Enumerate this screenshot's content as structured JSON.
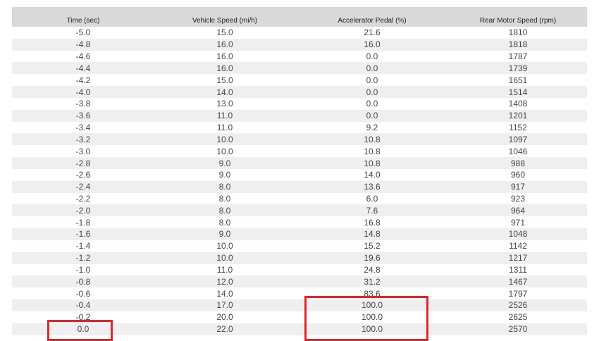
{
  "table": {
    "headers": [
      "Time (sec)",
      "Vehicle Speed (mi/h)",
      "Accelerator Pedal (%)",
      "Rear Motor Speed (rpm)"
    ],
    "rows": [
      [
        "-5.0",
        "15.0",
        "21.6",
        "1810"
      ],
      [
        "-4.8",
        "16.0",
        "16.0",
        "1818"
      ],
      [
        "-4.6",
        "16.0",
        "0.0",
        "1787"
      ],
      [
        "-4.4",
        "16.0",
        "0.0",
        "1739"
      ],
      [
        "-4.2",
        "15.0",
        "0.0",
        "1651"
      ],
      [
        "-4.0",
        "14.0",
        "0.0",
        "1514"
      ],
      [
        "-3.8",
        "13.0",
        "0.0",
        "1408"
      ],
      [
        "-3.6",
        "11.0",
        "0.0",
        "1201"
      ],
      [
        "-3.4",
        "11.0",
        "9.2",
        "1152"
      ],
      [
        "-3.2",
        "10.0",
        "10.8",
        "1097"
      ],
      [
        "-3.0",
        "10.0",
        "10.8",
        "1046"
      ],
      [
        "-2.8",
        "9.0",
        "10.8",
        "988"
      ],
      [
        "-2.6",
        "9.0",
        "14.0",
        "960"
      ],
      [
        "-2.4",
        "8.0",
        "13.6",
        "917"
      ],
      [
        "-2.2",
        "8.0",
        "6.0",
        "923"
      ],
      [
        "-2.0",
        "8.0",
        "7.6",
        "964"
      ],
      [
        "-1.8",
        "8.0",
        "16.8",
        "971"
      ],
      [
        "-1.6",
        "9.0",
        "14.8",
        "1048"
      ],
      [
        "-1.4",
        "10.0",
        "15.2",
        "1142"
      ],
      [
        "-1.2",
        "10.0",
        "19.6",
        "1217"
      ],
      [
        "-1.0",
        "11.0",
        "24.8",
        "1311"
      ],
      [
        "-0.8",
        "12.0",
        "31.2",
        "1467"
      ],
      [
        "-0.6",
        "14.0",
        "83.6",
        "1797"
      ],
      [
        "-0.4",
        "17.0",
        "100.0",
        "2526"
      ],
      [
        "-0.2",
        "20.0",
        "100.0",
        "2625"
      ],
      [
        "0.0",
        "22.0",
        "100.0",
        "2570"
      ]
    ]
  },
  "highlight_color": "#e0262b"
}
